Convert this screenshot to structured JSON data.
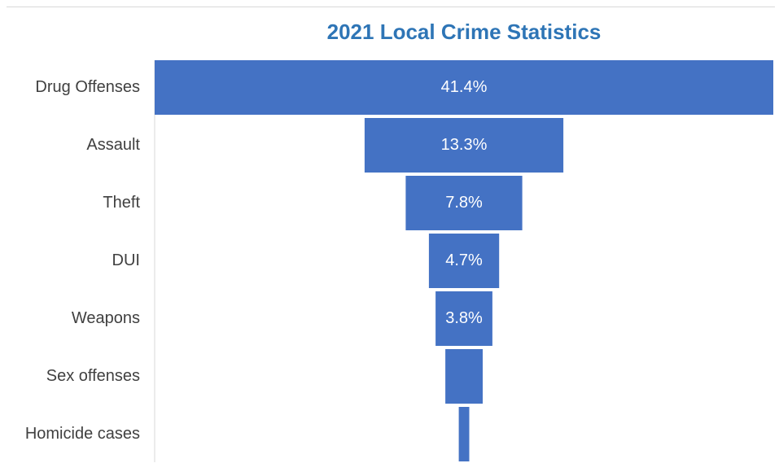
{
  "chart_data": {
    "type": "bar",
    "subtype": "funnel",
    "title": "2021 Local Crime Statistics",
    "categories": [
      "Drug Offenses",
      "Assault",
      "Theft",
      "DUI",
      "Weapons",
      "Sex offenses",
      "Homicide cases"
    ],
    "values": [
      41.4,
      13.3,
      7.8,
      4.7,
      3.8,
      2.5,
      0.7
    ],
    "data_labels": [
      "41.4%",
      "13.3%",
      "7.8%",
      "4.7%",
      "3.8%",
      "",
      ""
    ],
    "unit": "%",
    "xlabel": "",
    "ylabel": "",
    "grid": false,
    "legend": "none",
    "bar_color": "#4472c4"
  }
}
